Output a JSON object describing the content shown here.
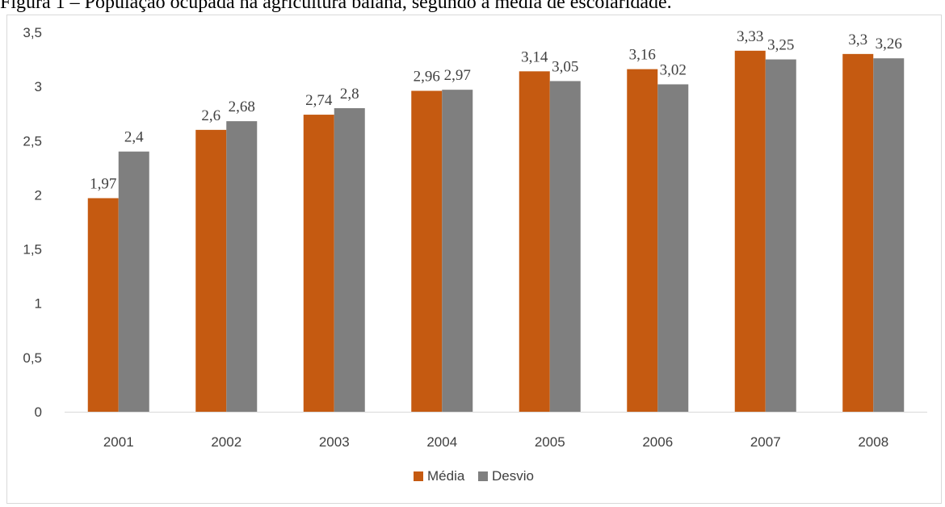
{
  "caption": "Figura 1 – População ocupada na agricultura baiana, segundo a média de escolaridade.",
  "chart_data": {
    "type": "bar",
    "title": "",
    "xlabel": "",
    "ylabel": "",
    "categories": [
      "2001",
      "2002",
      "2003",
      "2004",
      "2005",
      "2006",
      "2007",
      "2008"
    ],
    "series": [
      {
        "name": "Média",
        "color": "#c55a11",
        "values": [
          1.97,
          2.6,
          2.74,
          2.96,
          3.14,
          3.16,
          3.33,
          3.3
        ],
        "labels": [
          "1,97",
          "2,6",
          "2,74",
          "2,96",
          "3,14",
          "3,16",
          "3,33",
          "3,3"
        ]
      },
      {
        "name": "Desvio",
        "color": "#7f7f7f",
        "values": [
          2.4,
          2.68,
          2.8,
          2.97,
          3.05,
          3.02,
          3.25,
          3.26
        ],
        "labels": [
          "2,4",
          "2,68",
          "2,8",
          "2,97",
          "3,05",
          "3,02",
          "3,25",
          "3,26"
        ]
      }
    ],
    "ylim": [
      0,
      3.5
    ],
    "yticks": [
      0,
      0.5,
      1,
      1.5,
      2,
      2.5,
      3,
      3.5
    ],
    "ytick_labels": [
      "0",
      "0,5",
      "1",
      "1,5",
      "2",
      "2,5",
      "3",
      "3,5"
    ],
    "grid": false,
    "legend_position": "bottom"
  }
}
